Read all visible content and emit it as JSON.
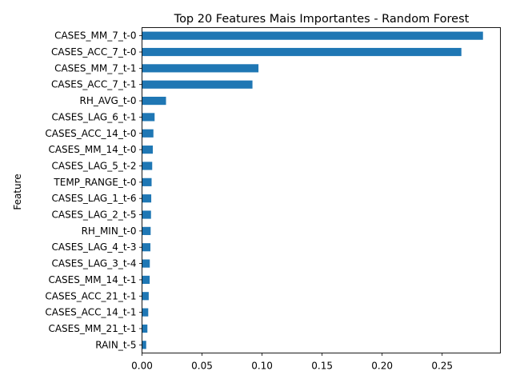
{
  "chart_data": {
    "type": "bar",
    "orientation": "horizontal",
    "title": "Top 20 Features Mais Importantes - Random Forest",
    "xlabel": "",
    "ylabel": "Feature",
    "categories": [
      "CASES_MM_7_t-0",
      "CASES_ACC_7_t-0",
      "CASES_MM_7_t-1",
      "CASES_ACC_7_t-1",
      "RH_AVG_t-0",
      "CASES_LAG_6_t-1",
      "CASES_ACC_14_t-0",
      "CASES_MM_14_t-0",
      "CASES_LAG_5_t-2",
      "TEMP_RANGE_t-0",
      "CASES_LAG_1_t-6",
      "CASES_LAG_2_t-5",
      "RH_MIN_t-0",
      "CASES_LAG_4_t-3",
      "CASES_LAG_3_t-4",
      "CASES_MM_14_t-1",
      "CASES_ACC_21_t-1",
      "CASES_ACC_14_t-1",
      "CASES_MM_21_t-1",
      "RAIN_t-5"
    ],
    "values": [
      0.284,
      0.266,
      0.097,
      0.092,
      0.02,
      0.0105,
      0.0095,
      0.009,
      0.0085,
      0.008,
      0.0077,
      0.0075,
      0.0072,
      0.007,
      0.0065,
      0.0064,
      0.0056,
      0.0052,
      0.0045,
      0.0035
    ],
    "xlim": [
      0,
      0.2985
    ],
    "xticks": [
      0.0,
      0.05,
      0.1,
      0.15,
      0.2,
      0.25
    ],
    "xtick_labels": [
      "0.00",
      "0.05",
      "0.10",
      "0.15",
      "0.20",
      "0.25"
    ],
    "grid": false,
    "legend": "none",
    "bar_color": "#1f77b4"
  }
}
